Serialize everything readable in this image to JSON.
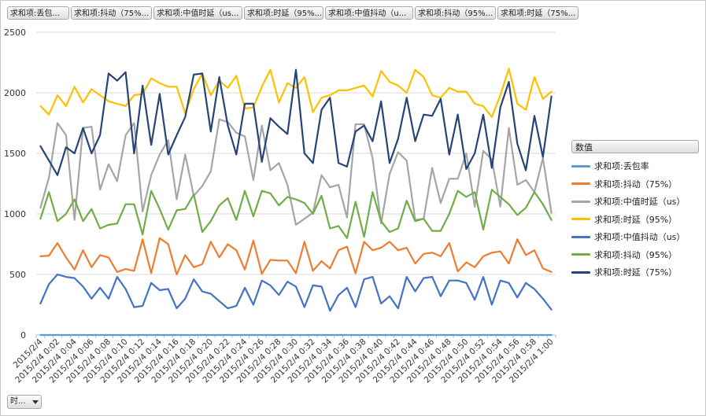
{
  "field_buttons": [
    "求和项:丢包...",
    "求和项:抖动（75%...",
    "求和项:中值时延（us...",
    "求和项:时延（95%...",
    "求和项:中值抖动（u...",
    "求和项:抖动（95%...",
    "求和项:时延（75%..."
  ],
  "legend": {
    "title": "数值"
  },
  "axis_field": {
    "label": "时..."
  },
  "chart_data": {
    "type": "line",
    "ylim": [
      0,
      2500
    ],
    "yticks": [
      0,
      500,
      1000,
      1500,
      2000,
      2500
    ],
    "legend_position": "right",
    "grid": true,
    "x_tick_labels": [
      "2015/2/4",
      "2015/2/4 0:02",
      "2015/2/4 0:04",
      "2015/2/4 0:06",
      "2015/2/4 0:08",
      "2015/2/4 0:10",
      "2015/2/4 0:12",
      "2015/2/4 0:14",
      "2015/2/4 0:16",
      "2015/2/4 0:18",
      "2015/2/4 0:20",
      "2015/2/4 0:22",
      "2015/2/4 0:24",
      "2015/2/4 0:26",
      "2015/2/4 0:28",
      "2015/2/4 0:30",
      "2015/2/4 0:32",
      "2015/2/4 0:34",
      "2015/2/4 0:36",
      "2015/2/4 0:38",
      "2015/2/4 0:40",
      "2015/2/4 0:42",
      "2015/2/4 0:44",
      "2015/2/4 0:46",
      "2015/2/4 0:48",
      "2015/2/4 0:50",
      "2015/2/4 0:52",
      "2015/2/4 0:54",
      "2015/2/4 0:56",
      "2015/2/4 0:58",
      "2015/2/4 1:00"
    ],
    "series": [
      {
        "name": "求和项:丢包率",
        "color": "#5b9bd5",
        "values": [
          0,
          0,
          0,
          0,
          0,
          0,
          0,
          0,
          0,
          0,
          0,
          0,
          0,
          0,
          0,
          0,
          0,
          0,
          0,
          0,
          0,
          0,
          0,
          0,
          0,
          0,
          0,
          0,
          0,
          0,
          0,
          0,
          0,
          0,
          0,
          0,
          0,
          0,
          0,
          0,
          0,
          0,
          0,
          0,
          0,
          0,
          0,
          0,
          0,
          0,
          0,
          0,
          0,
          0,
          0,
          0,
          0,
          0,
          0,
          0,
          0
        ]
      },
      {
        "name": "求和项:抖动（75%）",
        "color": "#ed7d31",
        "values": [
          650,
          655,
          760,
          640,
          540,
          700,
          560,
          660,
          640,
          520,
          545,
          530,
          790,
          510,
          800,
          750,
          500,
          660,
          560,
          585,
          770,
          640,
          750,
          700,
          540,
          780,
          505,
          620,
          615,
          615,
          510,
          770,
          530,
          610,
          550,
          700,
          730,
          510,
          770,
          700,
          720,
          770,
          700,
          720,
          590,
          670,
          680,
          650,
          760,
          525,
          600,
          560,
          650,
          680,
          690,
          590,
          790,
          660,
          700,
          550,
          520
        ]
      },
      {
        "name": "求和项:中值时延（us）",
        "color": "#a5a5a5",
        "values": [
          1050,
          1300,
          1750,
          1650,
          950,
          1710,
          1720,
          1200,
          1410,
          1270,
          1650,
          1750,
          1020,
          1320,
          1490,
          1610,
          1120,
          1490,
          1150,
          1230,
          1350,
          1780,
          1760,
          1670,
          1640,
          1280,
          1730,
          1360,
          1420,
          1240,
          910,
          960,
          1010,
          1320,
          1220,
          1240,
          970,
          1740,
          1740,
          1460,
          920,
          1330,
          1510,
          1440,
          950,
          960,
          1380,
          1090,
          1290,
          1290,
          1500,
          1060,
          1520,
          1450,
          1060,
          1710,
          1240,
          1280,
          1180,
          1460,
          1010
        ]
      },
      {
        "name": "求和项:时延（95%）",
        "color": "#ffc000",
        "values": [
          1890,
          1820,
          1980,
          1890,
          2050,
          1920,
          2030,
          1980,
          1930,
          1910,
          1890,
          1980,
          1990,
          2120,
          2080,
          2050,
          2050,
          1830,
          2030,
          2160,
          1980,
          2100,
          2040,
          2140,
          1870,
          1880,
          2050,
          2190,
          1920,
          2080,
          2040,
          2130,
          1840,
          1960,
          1980,
          2020,
          2020,
          2040,
          2060,
          1970,
          2180,
          2090,
          2060,
          2000,
          2190,
          2130,
          1980,
          1960,
          2040,
          2010,
          2010,
          1910,
          1890,
          1800,
          1980,
          2200,
          1910,
          1860,
          2130,
          1950,
          2010
        ]
      },
      {
        "name": "求和项:中值抖动（us）",
        "color": "#4472c4",
        "values": [
          260,
          420,
          500,
          480,
          470,
          400,
          300,
          390,
          300,
          480,
          380,
          230,
          240,
          430,
          370,
          380,
          220,
          300,
          460,
          360,
          340,
          280,
          220,
          240,
          390,
          250,
          450,
          410,
          330,
          440,
          400,
          230,
          410,
          400,
          200,
          330,
          390,
          230,
          460,
          480,
          260,
          320,
          220,
          480,
          360,
          470,
          480,
          320,
          450,
          450,
          430,
          290,
          480,
          250,
          450,
          430,
          310,
          430,
          380,
          300,
          210
        ]
      },
      {
        "name": "求和项:抖动（95%）",
        "color": "#70ad47",
        "values": [
          960,
          1180,
          940,
          1000,
          1120,
          940,
          1040,
          880,
          910,
          920,
          1080,
          1080,
          830,
          1190,
          1040,
          870,
          1030,
          1040,
          1160,
          850,
          940,
          1070,
          1130,
          950,
          1190,
          980,
          1190,
          1170,
          1070,
          1140,
          1120,
          1090,
          1000,
          1150,
          880,
          900,
          800,
          1100,
          810,
          1180,
          940,
          850,
          880,
          1110,
          940,
          960,
          860,
          860,
          1000,
          1190,
          1140,
          1180,
          870,
          1200,
          1140,
          1080,
          990,
          1050,
          1180,
          1080,
          950
        ]
      },
      {
        "name": "求和项:时延（75%）",
        "color": "#264478",
        "values": [
          1560,
          1440,
          1320,
          1550,
          1500,
          1710,
          1500,
          1650,
          2160,
          2100,
          2170,
          1500,
          2060,
          1570,
          1990,
          1490,
          1650,
          1800,
          2150,
          2160,
          1680,
          2130,
          1730,
          1490,
          1910,
          1910,
          1430,
          1790,
          1720,
          1660,
          2190,
          1500,
          1420,
          1860,
          1960,
          1420,
          1390,
          1680,
          1730,
          1600,
          1930,
          1420,
          1620,
          1960,
          1600,
          1820,
          1810,
          1950,
          1490,
          1820,
          1370,
          1500,
          1820,
          1380,
          1880,
          2090,
          1580,
          1360,
          1810,
          1470,
          1970
        ]
      }
    ]
  }
}
